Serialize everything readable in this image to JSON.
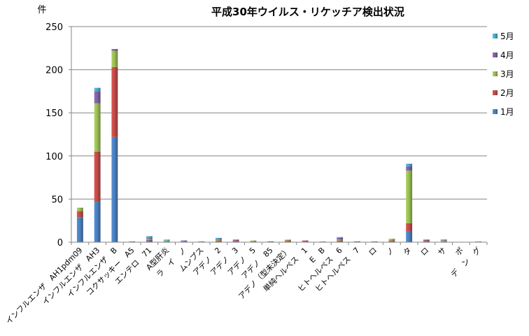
{
  "chart_data": {
    "type": "bar",
    "stacked": true,
    "title": "平成30年ウイルス・リケッチア検出状況",
    "ylabel": "件",
    "xlabel": "",
    "ylim": [
      0,
      250
    ],
    "yticks": [
      0,
      50,
      100,
      150,
      200,
      250
    ],
    "grid": true,
    "legend_position": "right",
    "categories": [
      "インフルエンザ　AH1pdm09",
      "インフルエンザ　AH3",
      "インフルエンザ　B",
      "コクサッキー　A5",
      "エンテロ　71",
      "A型肝炎",
      "ラ　イ　ノ",
      "ムンプス",
      "アデノ　2",
      "アデノ　3",
      "アデノ　5",
      "アデノ　85",
      "アデノ（型未決定）",
      "単純ヘルペス　1",
      "E　B",
      "ヒトヘルペス　6",
      "ヒトヘルペス　7",
      "ロ",
      "ノ",
      "タ",
      "ロ",
      "サ",
      "ポ",
      "デ　ン　グ"
    ],
    "series": [
      {
        "name": "1月",
        "color": "#4a7ebb",
        "values": [
          29,
          47,
          122,
          0,
          2,
          1,
          1,
          0,
          1,
          1,
          1,
          0,
          1,
          1,
          0,
          1,
          0,
          0,
          1,
          13,
          1,
          1,
          0,
          0
        ]
      },
      {
        "name": "2月",
        "color": "#be4b48",
        "values": [
          7,
          58,
          81,
          0,
          1,
          0,
          0,
          0,
          1,
          1,
          0,
          0,
          1,
          1,
          0,
          1,
          0,
          0,
          1,
          9,
          1,
          0,
          0,
          0
        ]
      },
      {
        "name": "3月",
        "color": "#98b954",
        "values": [
          4,
          56,
          19,
          0,
          1,
          1,
          0,
          0,
          1,
          0,
          1,
          0,
          1,
          0,
          1,
          1,
          0,
          0,
          2,
          61,
          0,
          1,
          0,
          1
        ]
      },
      {
        "name": "4月",
        "color": "#7d60a0",
        "values": [
          0,
          14,
          2,
          0,
          1,
          0,
          1,
          0,
          1,
          1,
          0,
          1,
          0,
          0,
          0,
          2,
          1,
          0,
          0,
          5,
          1,
          1,
          0,
          0
        ]
      },
      {
        "name": "5月",
        "color": "#46aac5",
        "values": [
          0,
          4,
          0,
          1,
          2,
          1,
          0,
          1,
          1,
          0,
          0,
          0,
          0,
          0,
          0,
          1,
          0,
          1,
          0,
          3,
          0,
          0,
          0,
          0
        ]
      }
    ]
  }
}
